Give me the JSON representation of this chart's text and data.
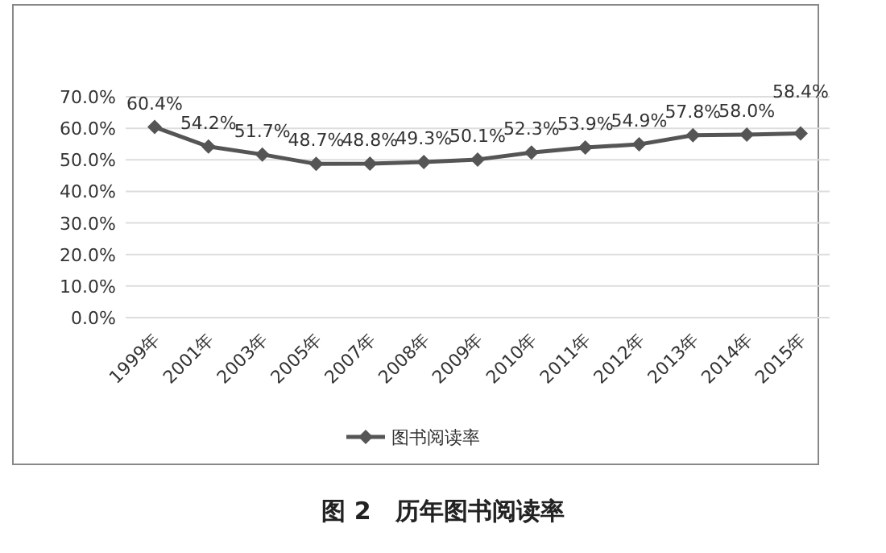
{
  "chart_data": {
    "type": "line",
    "title": "图 2　历年图书阅读率",
    "categories": [
      "1999年",
      "2001年",
      "2003年",
      "2005年",
      "2007年",
      "2008年",
      "2009年",
      "2010年",
      "2011年",
      "2012年",
      "2013年",
      "2014年",
      "2015年"
    ],
    "series": [
      {
        "name": "图书阅读率",
        "color": "#555555",
        "values": [
          60.4,
          54.2,
          51.7,
          48.7,
          48.8,
          49.3,
          50.1,
          52.3,
          53.9,
          54.9,
          57.8,
          58.0,
          58.4
        ],
        "value_labels": [
          "60.4%",
          "54.2%",
          "51.7%",
          "48.7%",
          "48.8%",
          "49.3%",
          "50.1%",
          "52.3%",
          "53.9%",
          "54.9%",
          "57.8%",
          "58.0%",
          "58.4%"
        ]
      }
    ],
    "ylim": [
      0,
      70
    ],
    "yticks": [
      {
        "value": 0,
        "label": "0.0%"
      },
      {
        "value": 10,
        "label": "10.0%"
      },
      {
        "value": 20,
        "label": "20.0%"
      },
      {
        "value": 30,
        "label": "30.0%"
      },
      {
        "value": 40,
        "label": "40.0%"
      },
      {
        "value": 50,
        "label": "50.0%"
      },
      {
        "value": 60,
        "label": "60.0%"
      },
      {
        "value": 70,
        "label": "70.0%"
      }
    ],
    "grid": "y",
    "legend": "bottom",
    "marker": "diamond",
    "line_style": "solid"
  }
}
